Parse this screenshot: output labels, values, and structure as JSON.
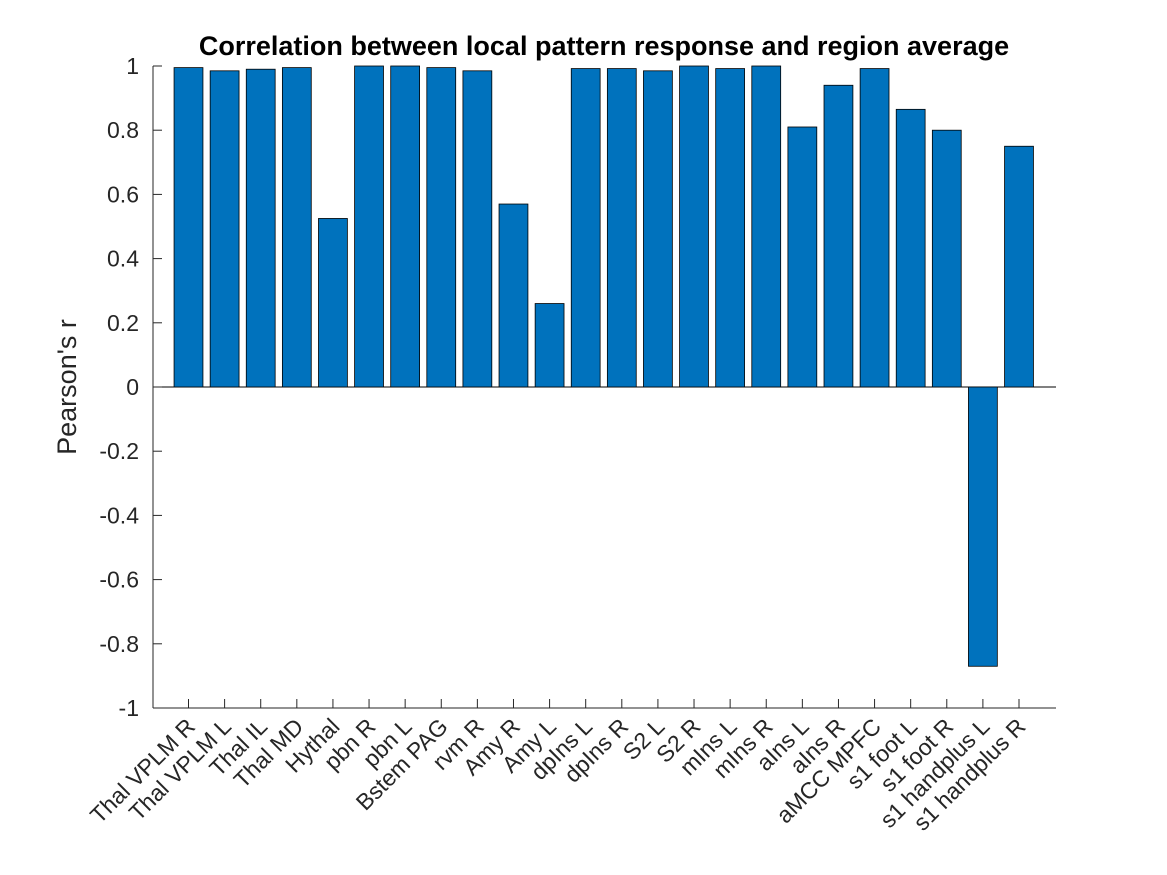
{
  "chart_data": {
    "type": "bar",
    "title": "Correlation between local pattern response and region average",
    "xlabel": "",
    "ylabel": "Pearson's r",
    "ylim": [
      -1,
      1
    ],
    "yticks": [
      "-1",
      "-0.8",
      "-0.6",
      "-0.4",
      "-0.2",
      "0",
      "0.2",
      "0.4",
      "0.6",
      "0.8",
      "1"
    ],
    "grid": false,
    "bar_color": "#0072BD",
    "categories": [
      "Thal VPLM R",
      "Thal VPLM L",
      "Thal IL",
      "Thal MD",
      "Hythal",
      "pbn R",
      "pbn L",
      "Bstem PAG",
      "rvm R",
      "Amy R",
      "Amy L",
      "dpIns L",
      "dpIns R",
      "S2 L",
      "S2 R",
      "mIns L",
      "mIns R",
      "aIns L",
      "aIns R",
      "aMCC MPFC",
      "s1 foot L",
      "s1 foot R",
      "s1 handplus L",
      "s1 handplus R"
    ],
    "values": [
      0.995,
      0.985,
      0.99,
      0.995,
      0.525,
      1.0,
      1.0,
      0.995,
      0.985,
      0.57,
      0.26,
      0.992,
      0.992,
      0.985,
      1.0,
      0.992,
      1.0,
      0.81,
      0.94,
      0.992,
      0.865,
      0.8,
      -0.87,
      0.75
    ]
  }
}
